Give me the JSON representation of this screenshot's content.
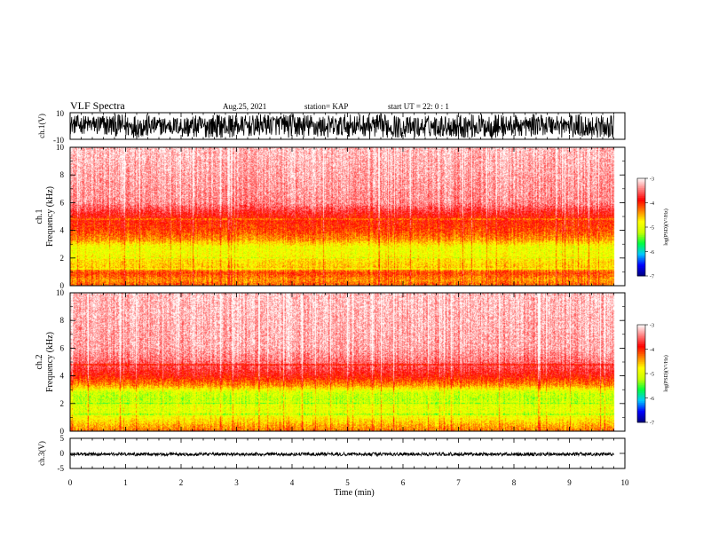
{
  "header": {
    "title": "VLF Spectra",
    "date": "Aug.25, 2021",
    "station": "station= KAP",
    "start": "start  UT =   22: 0  : 1"
  },
  "chart_data": [
    {
      "type": "line",
      "panel": "ch1-waveform",
      "ylabel": "ch.1(V)",
      "ylim": [
        -10,
        10
      ],
      "y_ticks": [
        "10",
        "-10"
      ],
      "xlim": [
        0,
        10
      ],
      "envelope_min": [
        -6,
        -8,
        -9,
        -7,
        -9,
        -9,
        -8,
        -7,
        -9,
        -9,
        -8,
        -9,
        -9,
        -8,
        -9,
        -9,
        -8,
        -7,
        -9,
        -9
      ],
      "envelope_max": [
        8,
        9,
        9,
        7,
        8,
        9,
        8,
        9,
        9,
        8,
        9,
        9,
        7,
        8,
        9,
        9,
        8,
        9,
        9,
        8
      ],
      "data_end_min": 9.8
    },
    {
      "type": "heatmap",
      "panel": "ch1-spectrogram",
      "ylabel_line1": "ch.1",
      "ylabel_line2": "Frequency  (kHz)",
      "ylim": [
        0,
        10
      ],
      "y_ticks": [
        "0",
        "2",
        "4",
        "6",
        "8",
        "10"
      ],
      "xlim": [
        0,
        10
      ],
      "data_end_min": 9.8,
      "freq_profile": [
        {
          "f": 0.0,
          "v": -4.2
        },
        {
          "f": 0.4,
          "v": -4.4
        },
        {
          "f": 0.9,
          "v": -4.1
        },
        {
          "f": 1.3,
          "v": -4.6
        },
        {
          "f": 1.8,
          "v": -4.7
        },
        {
          "f": 2.3,
          "v": -4.9
        },
        {
          "f": 2.8,
          "v": -4.9
        },
        {
          "f": 3.3,
          "v": -4.4
        },
        {
          "f": 4.0,
          "v": -4.1
        },
        {
          "f": 5.0,
          "v": -3.9
        },
        {
          "f": 6.0,
          "v": -3.4
        },
        {
          "f": 10.0,
          "v": -3.2
        }
      ],
      "colorbar": {
        "ticks": [
          "-3",
          "-4",
          "-5",
          "-6",
          "-7"
        ],
        "label": "log(PSD)(V²/Hz)",
        "range": [
          -7,
          -3
        ]
      }
    },
    {
      "type": "heatmap",
      "panel": "ch2-spectrogram",
      "ylabel_line1": "ch.2",
      "ylabel_line2": "Frequency  (kHz)",
      "ylim": [
        0,
        10
      ],
      "y_ticks": [
        "0",
        "2",
        "4",
        "6",
        "8",
        "10"
      ],
      "xlim": [
        0,
        10
      ],
      "data_end_min": 9.8,
      "freq_profile": [
        {
          "f": 0.0,
          "v": -4.3
        },
        {
          "f": 0.4,
          "v": -4.5
        },
        {
          "f": 0.9,
          "v": -4.8
        },
        {
          "f": 1.3,
          "v": -5.0
        },
        {
          "f": 1.8,
          "v": -5.0
        },
        {
          "f": 2.3,
          "v": -5.2
        },
        {
          "f": 2.8,
          "v": -5.1
        },
        {
          "f": 3.3,
          "v": -4.4
        },
        {
          "f": 4.0,
          "v": -3.9
        },
        {
          "f": 5.0,
          "v": -3.5
        },
        {
          "f": 6.0,
          "v": -3.3
        },
        {
          "f": 10.0,
          "v": -3.2
        }
      ],
      "colorbar": {
        "ticks": [
          "-3",
          "-4",
          "-5",
          "-6",
          "-7"
        ],
        "label": "log(PSD)(V²/Hz)",
        "range": [
          -7,
          -3
        ]
      }
    },
    {
      "type": "line",
      "panel": "ch3-waveform",
      "ylabel": "ch.3(V)",
      "ylim": [
        -5,
        5
      ],
      "y_ticks": [
        "5",
        "0",
        "-5"
      ],
      "xlim": [
        0,
        10
      ],
      "band": [
        -0.8,
        0.3
      ],
      "data_end_min": 9.8
    }
  ],
  "xaxis": {
    "label": "Time  (min)",
    "ticks": [
      "0",
      "1",
      "2",
      "3",
      "4",
      "5",
      "6",
      "7",
      "8",
      "9",
      "10"
    ]
  },
  "colormap": [
    "#00007f",
    "#0000ff",
    "#00c8ff",
    "#00ff40",
    "#c8ff00",
    "#ffff00",
    "#ff8000",
    "#ff0000",
    "#ff8080",
    "#ffffff"
  ]
}
